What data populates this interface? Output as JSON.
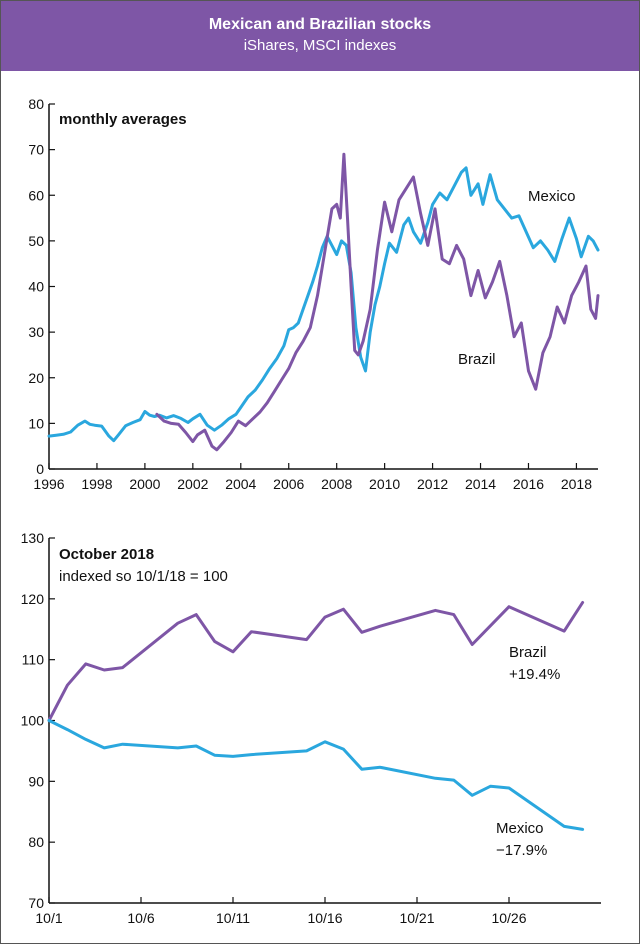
{
  "header": {
    "title": "Mexican and Brazilian stocks",
    "subtitle": "iShares, MSCI indexes"
  },
  "chart_data": [
    {
      "type": "line",
      "title": "monthly averages",
      "xlabel": "",
      "ylabel": "",
      "xlim": [
        1996,
        2018.9
      ],
      "ylim": [
        0,
        80
      ],
      "y_ticks": [
        "0",
        "10",
        "20",
        "30",
        "40",
        "50",
        "60",
        "70",
        "80"
      ],
      "x_ticks": [
        "1996",
        "1998",
        "2000",
        "2002",
        "2004",
        "2006",
        "2008",
        "2010",
        "2012",
        "2014",
        "2016",
        "2018"
      ],
      "series": [
        {
          "name": "Mexico",
          "color": "#2aa7de",
          "x": [
            1996.0,
            1996.3,
            1996.6,
            1996.9,
            1997.2,
            1997.5,
            1997.7,
            1997.9,
            1998.2,
            1998.5,
            1998.7,
            1998.9,
            1999.2,
            1999.5,
            1999.8,
            2000.0,
            2000.2,
            2000.4,
            2000.6,
            2000.9,
            2001.2,
            2001.5,
            2001.8,
            2002.0,
            2002.3,
            2002.6,
            2002.9,
            2003.2,
            2003.5,
            2003.8,
            2004.0,
            2004.3,
            2004.6,
            2004.9,
            2005.2,
            2005.5,
            2005.8,
            2006.0,
            2006.2,
            2006.4,
            2006.6,
            2006.8,
            2007.0,
            2007.2,
            2007.4,
            2007.6,
            2007.8,
            2008.0,
            2008.2,
            2008.4,
            2008.6,
            2008.8,
            2009.0,
            2009.2,
            2009.4,
            2009.6,
            2009.8,
            2010.0,
            2010.2,
            2010.5,
            2010.8,
            2011.0,
            2011.2,
            2011.5,
            2011.8,
            2012.0,
            2012.3,
            2012.6,
            2012.9,
            2013.2,
            2013.4,
            2013.6,
            2013.9,
            2014.1,
            2014.4,
            2014.7,
            2015.0,
            2015.3,
            2015.6,
            2015.9,
            2016.2,
            2016.5,
            2016.8,
            2017.1,
            2017.4,
            2017.7,
            2018.0,
            2018.2,
            2018.5,
            2018.7,
            2018.9
          ],
          "values": [
            7.2,
            7.4,
            7.6,
            8.1,
            9.6,
            10.5,
            9.8,
            9.6,
            9.4,
            7.2,
            6.2,
            7.5,
            9.5,
            10.2,
            10.8,
            12.6,
            11.8,
            11.5,
            11.8,
            11.2,
            11.7,
            11.1,
            10.2,
            11.0,
            12.0,
            9.6,
            8.5,
            9.6,
            11.0,
            12.0,
            13.5,
            15.8,
            17.3,
            19.5,
            22.0,
            24.2,
            27.0,
            30.5,
            31.0,
            32.0,
            35.0,
            38.0,
            41.0,
            44.5,
            48.5,
            51.0,
            49.0,
            47.0,
            50.0,
            49.0,
            43.0,
            31.0,
            24.5,
            21.5,
            30.0,
            36.0,
            40.0,
            45.0,
            49.5,
            47.5,
            53.5,
            55.0,
            52.0,
            49.5,
            54.0,
            58.0,
            60.5,
            59.0,
            62.0,
            65.0,
            66.0,
            60.0,
            62.5,
            58.0,
            64.5,
            59.0,
            57.0,
            55.0,
            55.5,
            52.0,
            48.5,
            50.0,
            48.0,
            45.5,
            50.5,
            55.0,
            50.5,
            46.5,
            51.0,
            50.0,
            48.0
          ]
        },
        {
          "name": "Brazil",
          "color": "#7e56a6",
          "x": [
            2000.5,
            2000.8,
            2001.1,
            2001.4,
            2001.7,
            2002.0,
            2002.2,
            2002.5,
            2002.8,
            2003.0,
            2003.3,
            2003.6,
            2003.9,
            2004.2,
            2004.5,
            2004.8,
            2005.1,
            2005.4,
            2005.7,
            2006.0,
            2006.3,
            2006.6,
            2006.9,
            2007.2,
            2007.5,
            2007.8,
            2008.0,
            2008.15,
            2008.3,
            2008.45,
            2008.6,
            2008.75,
            2008.9,
            2009.1,
            2009.4,
            2009.7,
            2010.0,
            2010.3,
            2010.6,
            2010.9,
            2011.2,
            2011.5,
            2011.8,
            2012.1,
            2012.4,
            2012.7,
            2013.0,
            2013.3,
            2013.6,
            2013.9,
            2014.2,
            2014.5,
            2014.8,
            2015.1,
            2015.4,
            2015.7,
            2016.0,
            2016.3,
            2016.6,
            2016.9,
            2017.2,
            2017.5,
            2017.8,
            2018.1,
            2018.4,
            2018.6,
            2018.8,
            2018.9
          ],
          "values": [
            12.0,
            10.5,
            10.0,
            9.8,
            8.0,
            6.0,
            7.5,
            8.5,
            5.0,
            4.2,
            6.0,
            8.0,
            10.5,
            9.5,
            11.0,
            12.5,
            14.5,
            17.0,
            19.5,
            22.0,
            25.5,
            28.0,
            31.0,
            38.0,
            47.5,
            57.0,
            58.0,
            55.0,
            69.0,
            55.0,
            40.0,
            26.0,
            25.0,
            28.0,
            35.0,
            48.0,
            58.5,
            52.0,
            59.0,
            61.5,
            64.0,
            56.0,
            49.0,
            57.0,
            46.0,
            45.0,
            49.0,
            46.0,
            38.0,
            43.5,
            37.5,
            41.0,
            45.5,
            38.0,
            29.0,
            32.0,
            21.5,
            17.5,
            25.5,
            29.0,
            35.5,
            32.0,
            38.0,
            41.0,
            44.5,
            35.0,
            33.0,
            38.0
          ]
        }
      ],
      "labels": {
        "mexico": "Mexico",
        "brazil": "Brazil"
      }
    },
    {
      "type": "line",
      "title": "October 2018",
      "subtitle": "indexed so 10/1/18 = 100",
      "xlabel": "",
      "ylabel": "",
      "xlim": [
        1,
        31
      ],
      "ylim": [
        70,
        130
      ],
      "y_ticks": [
        "70",
        "80",
        "90",
        "100",
        "110",
        "120",
        "130"
      ],
      "x_ticks": [
        "10/1",
        "10/6",
        "10/11",
        "10/16",
        "10/21",
        "10/26"
      ],
      "series": [
        {
          "name": "Brazil",
          "color": "#7e56a6",
          "x": [
            1,
            2,
            3,
            4,
            5,
            8,
            9,
            10,
            11,
            12,
            15,
            16,
            17,
            18,
            19,
            22,
            23,
            24,
            26,
            29,
            30
          ],
          "values": [
            100,
            105.8,
            109.3,
            108.3,
            108.7,
            116.0,
            117.4,
            113.0,
            111.3,
            114.6,
            113.3,
            117.0,
            118.3,
            114.5,
            115.5,
            118.1,
            117.4,
            112.5,
            118.7,
            114.7,
            119.4
          ]
        },
        {
          "name": "Mexico",
          "color": "#2aa7de",
          "x": [
            1,
            2,
            3,
            4,
            5,
            8,
            9,
            10,
            11,
            12,
            15,
            16,
            17,
            18,
            19,
            22,
            23,
            24,
            25,
            26,
            29,
            30
          ],
          "values": [
            100,
            98.5,
            96.9,
            95.5,
            96.1,
            95.5,
            95.8,
            94.3,
            94.1,
            94.4,
            95.0,
            96.5,
            95.3,
            92.0,
            92.3,
            90.5,
            90.2,
            87.7,
            89.2,
            88.9,
            82.6,
            82.1
          ]
        }
      ],
      "labels": {
        "brazil": "Brazil",
        "brazil_change": "+19.4%",
        "mexico": "Mexico",
        "mexico_change": "−17.9%"
      }
    }
  ]
}
